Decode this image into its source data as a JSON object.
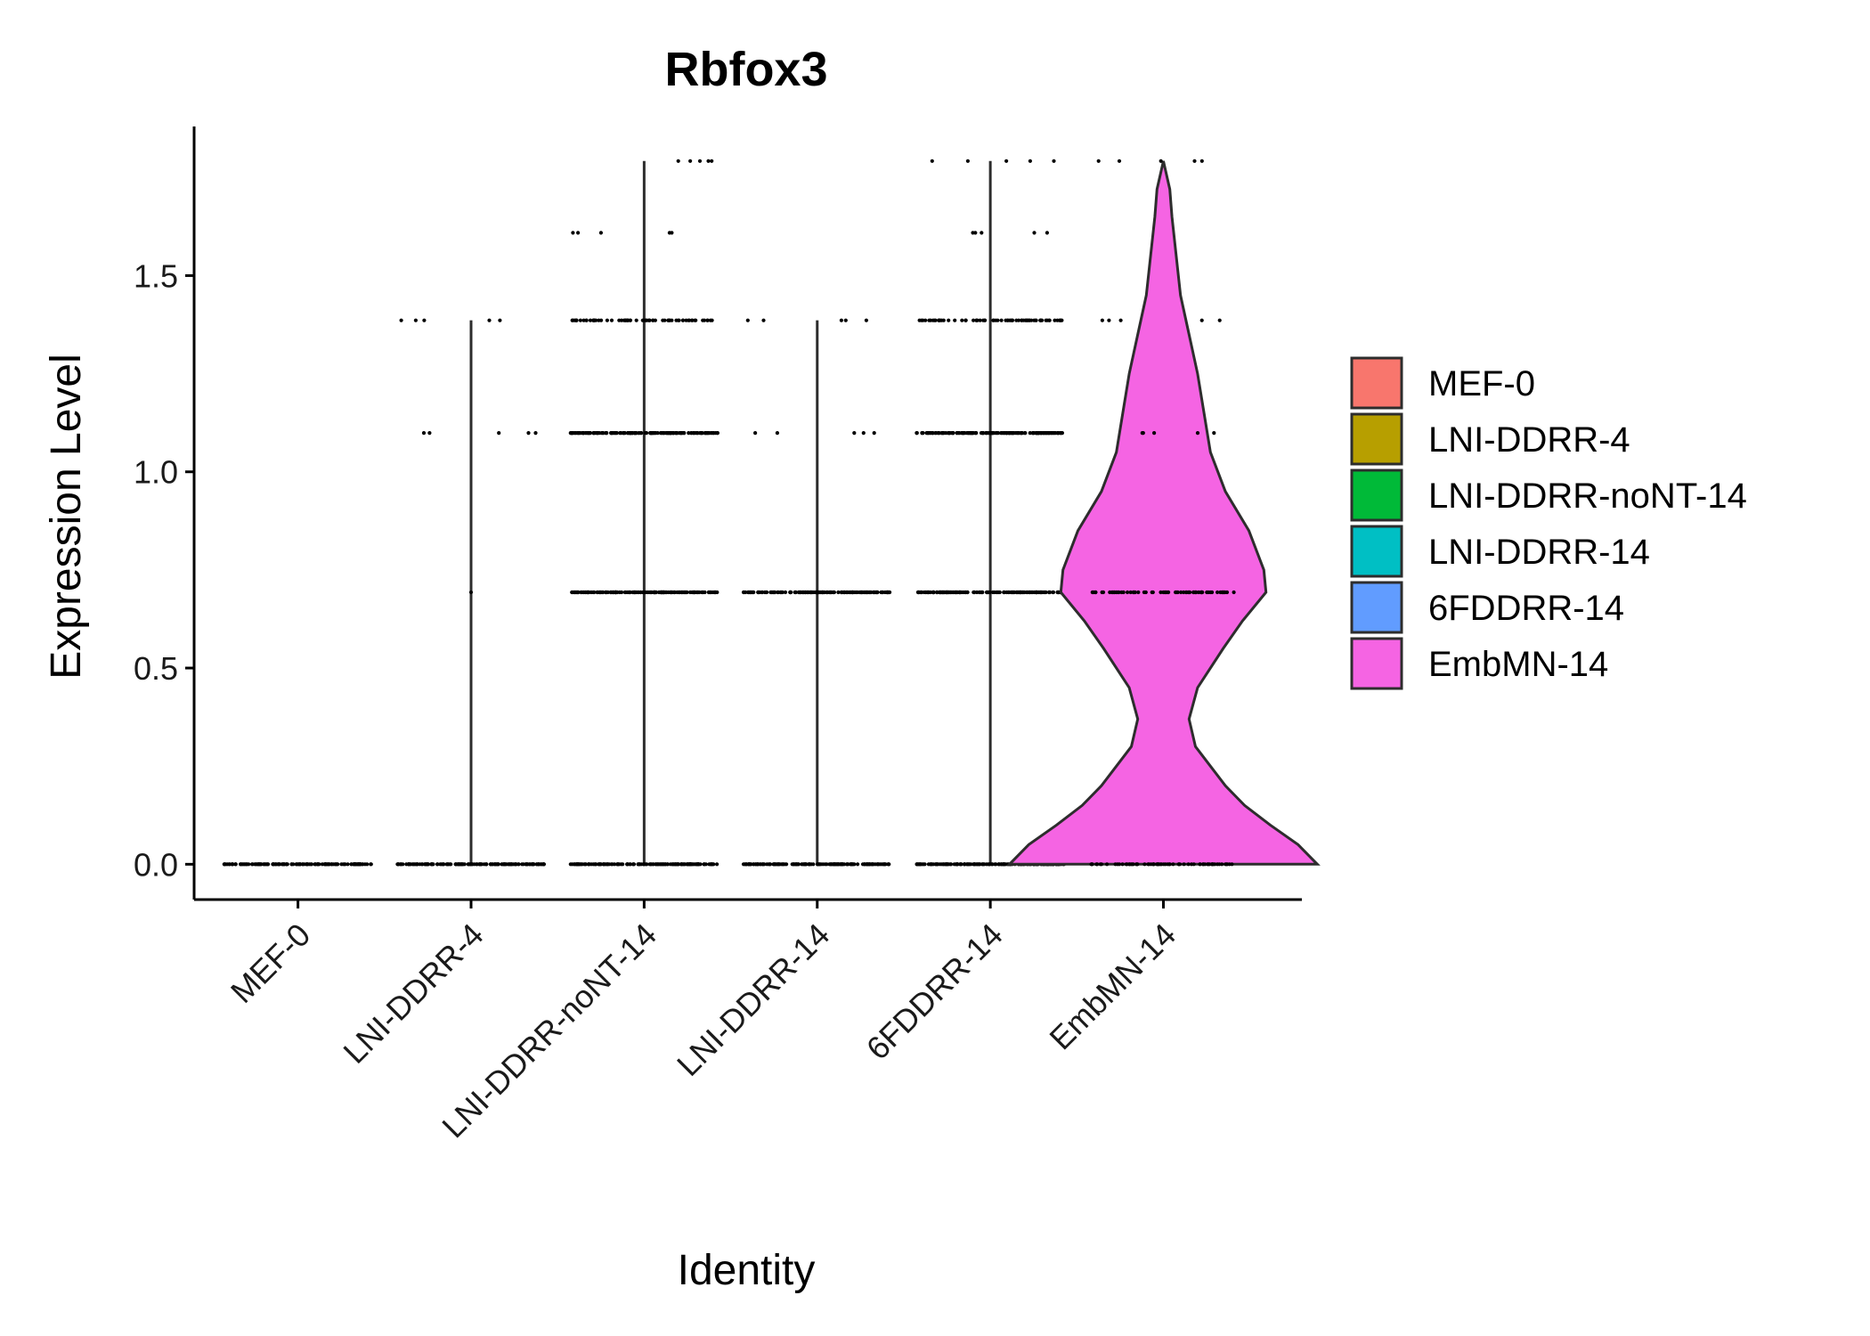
{
  "chart_data": {
    "type": "violin",
    "title": "Rbfox3",
    "xlabel": "Identity",
    "ylabel": "Expression Level",
    "ylim": [
      -0.09,
      1.88
    ],
    "yticks": [
      "0.0",
      "0.5",
      "1.0",
      "1.5"
    ],
    "ytick_values": [
      0.0,
      0.5,
      1.0,
      1.5
    ],
    "categories": [
      "MEF-0",
      "LNI-DDRR-4",
      "LNI-DDRR-noNT-14",
      "LNI-DDRR-14",
      "6FDDRR-14",
      "EmbMN-14"
    ],
    "legend": {
      "position": "right",
      "entries": [
        {
          "label": "MEF-0",
          "color": "#F8766D"
        },
        {
          "label": "LNI-DDRR-4",
          "color": "#B79F00"
        },
        {
          "label": "LNI-DDRR-noNT-14",
          "color": "#00BA38"
        },
        {
          "label": "LNI-DDRR-14",
          "color": "#00BFC4"
        },
        {
          "label": "6FDDRR-14",
          "color": "#619CFF"
        },
        {
          "label": "EmbMN-14",
          "color": "#F564E3"
        }
      ]
    },
    "series": [
      {
        "name": "MEF-0",
        "color": "#F8766D",
        "max": 0.0,
        "profile": [],
        "levels": [
          {
            "y": 0.0,
            "density": "dense"
          }
        ]
      },
      {
        "name": "LNI-DDRR-4",
        "color": "#B79F00",
        "max": 1.386,
        "profile": [],
        "levels": [
          {
            "y": 0.0,
            "density": "dense"
          },
          {
            "y": 0.693,
            "density": "single"
          },
          {
            "y": 1.099,
            "density": "sparse"
          },
          {
            "y": 1.386,
            "density": "sparse"
          }
        ]
      },
      {
        "name": "LNI-DDRR-noNT-14",
        "color": "#00BA38",
        "max": 1.792,
        "profile": [],
        "levels": [
          {
            "y": 0.0,
            "density": "dense"
          },
          {
            "y": 0.693,
            "density": "dense"
          },
          {
            "y": 1.099,
            "density": "dense"
          },
          {
            "y": 1.386,
            "density": "medium"
          },
          {
            "y": 1.609,
            "density": "sparse"
          },
          {
            "y": 1.792,
            "density": "sparse"
          }
        ]
      },
      {
        "name": "LNI-DDRR-14",
        "color": "#00BFC4",
        "max": 1.386,
        "profile": [],
        "levels": [
          {
            "y": 0.0,
            "density": "dense"
          },
          {
            "y": 0.693,
            "density": "dense"
          },
          {
            "y": 1.099,
            "density": "sparse"
          },
          {
            "y": 1.386,
            "density": "sparse"
          }
        ]
      },
      {
        "name": "6FDDRR-14",
        "color": "#619CFF",
        "max": 1.792,
        "profile": [],
        "levels": [
          {
            "y": 0.0,
            "density": "dense"
          },
          {
            "y": 0.693,
            "density": "dense"
          },
          {
            "y": 1.099,
            "density": "dense"
          },
          {
            "y": 1.386,
            "density": "medium"
          },
          {
            "y": 1.609,
            "density": "sparse"
          },
          {
            "y": 1.792,
            "density": "sparse"
          }
        ]
      },
      {
        "name": "EmbMN-14",
        "color": "#F564E3",
        "max": 1.792,
        "profile": [
          [
            0.0,
            0.72
          ],
          [
            0.05,
            0.63
          ],
          [
            0.1,
            0.5
          ],
          [
            0.15,
            0.38
          ],
          [
            0.2,
            0.29
          ],
          [
            0.25,
            0.22
          ],
          [
            0.3,
            0.15
          ],
          [
            0.37,
            0.12
          ],
          [
            0.45,
            0.16
          ],
          [
            0.55,
            0.28
          ],
          [
            0.62,
            0.37
          ],
          [
            0.693,
            0.48
          ],
          [
            0.75,
            0.47
          ],
          [
            0.85,
            0.4
          ],
          [
            0.95,
            0.29
          ],
          [
            1.05,
            0.22
          ],
          [
            1.15,
            0.19
          ],
          [
            1.25,
            0.16
          ],
          [
            1.35,
            0.12
          ],
          [
            1.45,
            0.08
          ],
          [
            1.55,
            0.06
          ],
          [
            1.65,
            0.04
          ],
          [
            1.72,
            0.03
          ],
          [
            1.792,
            0.0
          ]
        ],
        "levels": [
          {
            "y": 0.0,
            "density": "medium"
          },
          {
            "y": 0.693,
            "density": "medium"
          },
          {
            "y": 1.099,
            "density": "sparse"
          },
          {
            "y": 1.386,
            "density": "sparse"
          },
          {
            "y": 1.792,
            "density": "sparse"
          }
        ]
      }
    ]
  }
}
